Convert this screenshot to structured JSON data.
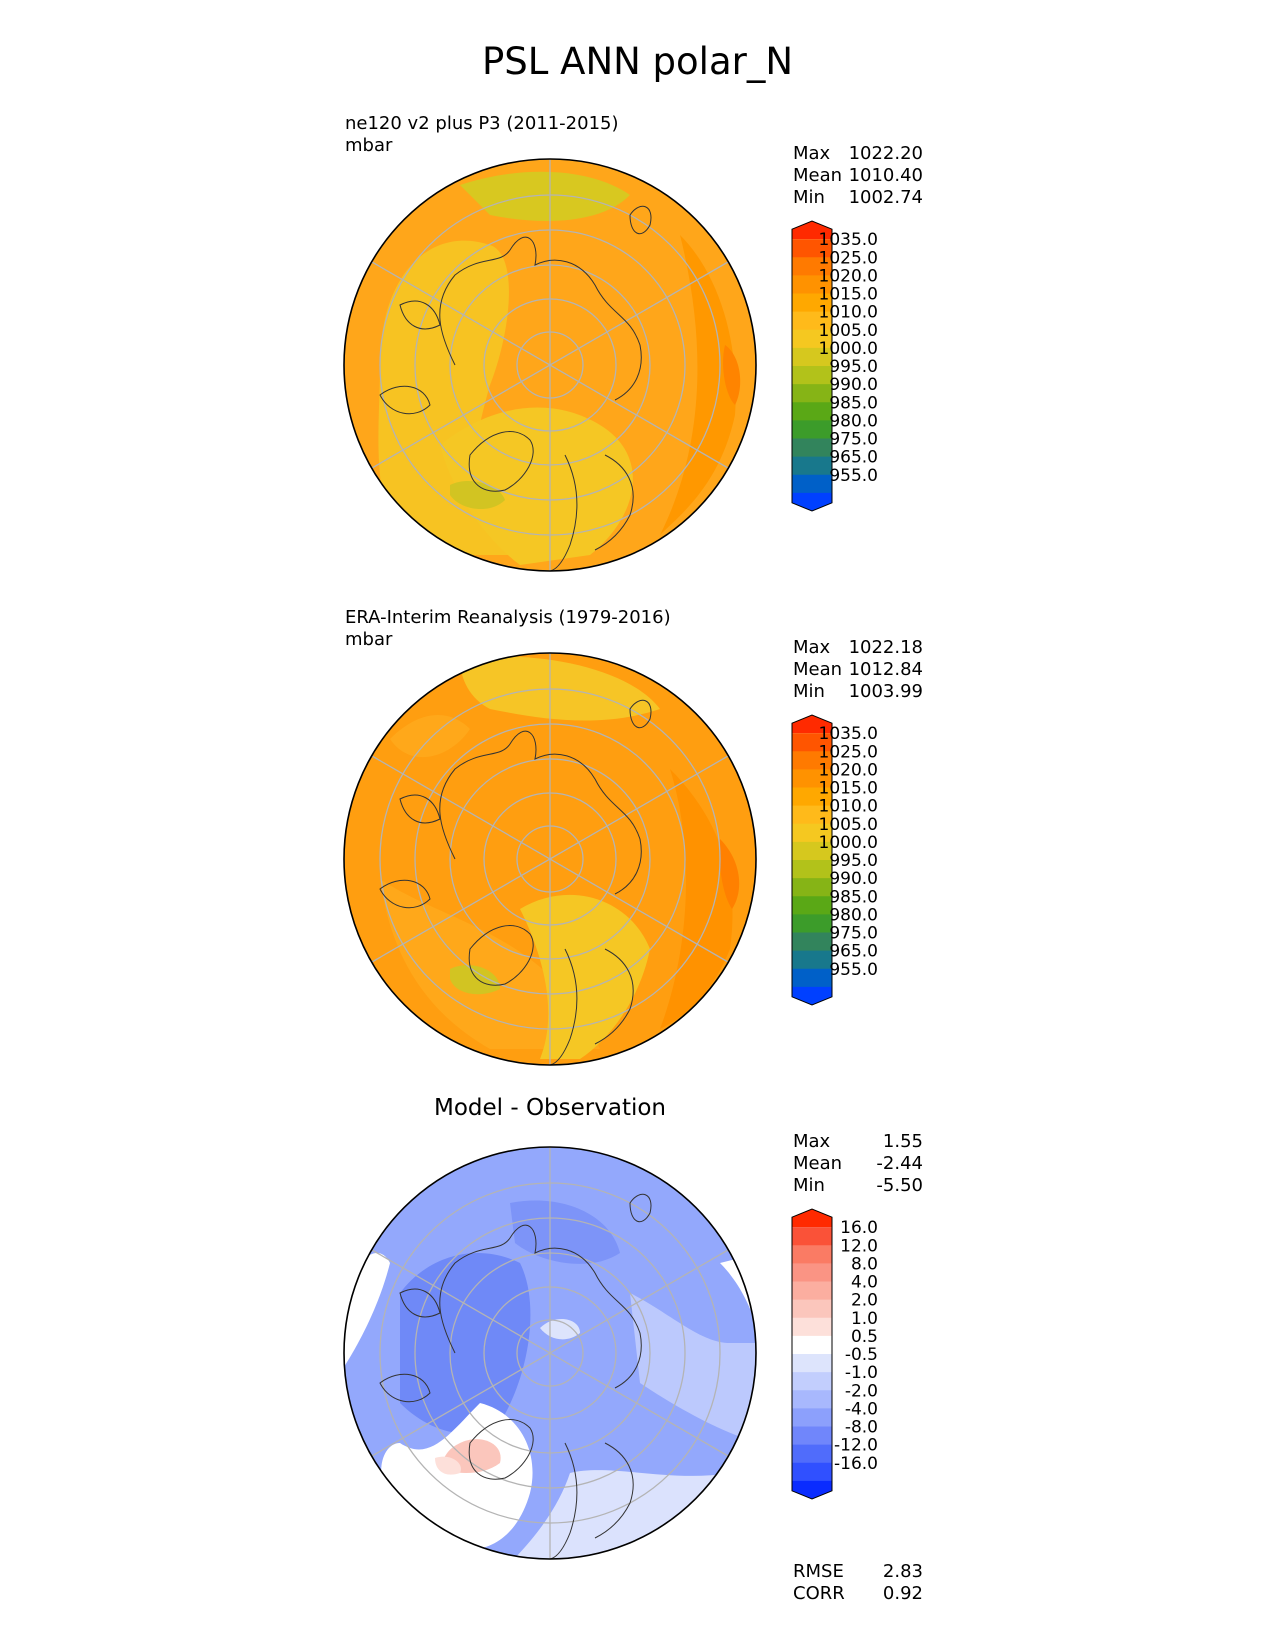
{
  "figure": {
    "title": "PSL ANN polar_N"
  },
  "panels": [
    {
      "id": "test",
      "title": "ne120 v2 plus P3 (2011-2015)",
      "units": "mbar",
      "stats": [
        {
          "label": "Max",
          "value": "1022.20"
        },
        {
          "label": "Mean",
          "value": "1010.40"
        },
        {
          "label": "Min",
          "value": "1002.74"
        }
      ],
      "colorbar": "abs"
    },
    {
      "id": "ref",
      "title": "ERA-Interim Reanalysis (1979-2016)",
      "units": "mbar",
      "stats": [
        {
          "label": "Max",
          "value": "1022.18"
        },
        {
          "label": "Mean",
          "value": "1012.84"
        },
        {
          "label": "Min",
          "value": "1003.99"
        }
      ],
      "colorbar": "abs"
    },
    {
      "id": "diff",
      "title": "Model - Observation",
      "units": "",
      "stats": [
        {
          "label": "Max",
          "value": "1.55"
        },
        {
          "label": "Mean",
          "value": "-2.44"
        },
        {
          "label": "Min",
          "value": "-5.50"
        }
      ],
      "extra_stats": [
        {
          "label": "RMSE",
          "value": "2.83"
        },
        {
          "label": "CORR",
          "value": "0.92"
        }
      ],
      "colorbar": "diff"
    }
  ],
  "colorbars": {
    "abs": {
      "labels": [
        "1035.0",
        "1025.0",
        "1020.0",
        "1015.0",
        "1010.0",
        "1005.0",
        "1000.0",
        "995.0",
        "990.0",
        "985.0",
        "980.0",
        "975.0",
        "965.0",
        "955.0"
      ],
      "colors": [
        "#ff2a00",
        "#ff5500",
        "#ff7a00",
        "#ff9200",
        "#ffa800",
        "#ffba1a",
        "#f5c820",
        "#d6c81e",
        "#b2c21a",
        "#86b416",
        "#5aa816",
        "#3c9c2a",
        "#32845c",
        "#18788c",
        "#0060c8",
        "#0040ff"
      ]
    },
    "diff": {
      "labels": [
        "16.0",
        "12.0",
        "8.0",
        "4.0",
        "2.0",
        "1.0",
        "0.5",
        "-0.5",
        "-1.0",
        "-2.0",
        "-4.0",
        "-8.0",
        "-12.0",
        "-16.0"
      ],
      "colors": [
        "#ff2a00",
        "#fa5238",
        "#fa7b64",
        "#fa9484",
        "#fbaea0",
        "#fbc6bc",
        "#fde0da",
        "#ffffff",
        "#dde4fc",
        "#c2cefd",
        "#a8b8fd",
        "#8ca0fc",
        "#7086fb",
        "#506cfb",
        "#3050ff",
        "#0a2cff"
      ]
    }
  },
  "chart_data": [
    {
      "type": "heatmap",
      "title": "ne120 v2 plus P3 (2011-2015)",
      "units": "mbar",
      "projection": "north polar stereographic",
      "max": 1022.2,
      "mean": 1010.4,
      "min": 1002.74,
      "colorbar_levels": [
        955,
        965,
        975,
        980,
        985,
        990,
        995,
        1000,
        1005,
        1010,
        1015,
        1020,
        1025,
        1035
      ]
    },
    {
      "type": "heatmap",
      "title": "ERA-Interim Reanalysis (1979-2016)",
      "units": "mbar",
      "projection": "north polar stereographic",
      "max": 1022.18,
      "mean": 1012.84,
      "min": 1003.99,
      "colorbar_levels": [
        955,
        965,
        975,
        980,
        985,
        990,
        995,
        1000,
        1005,
        1010,
        1015,
        1020,
        1025,
        1035
      ]
    },
    {
      "type": "heatmap",
      "title": "Model - Observation",
      "projection": "north polar stereographic",
      "max": 1.55,
      "mean": -2.44,
      "min": -5.5,
      "rmse": 2.83,
      "corr": 0.92,
      "colorbar_levels": [
        -16,
        -12,
        -8,
        -4,
        -2,
        -1,
        -0.5,
        0.5,
        1,
        2,
        4,
        8,
        12,
        16
      ]
    }
  ]
}
